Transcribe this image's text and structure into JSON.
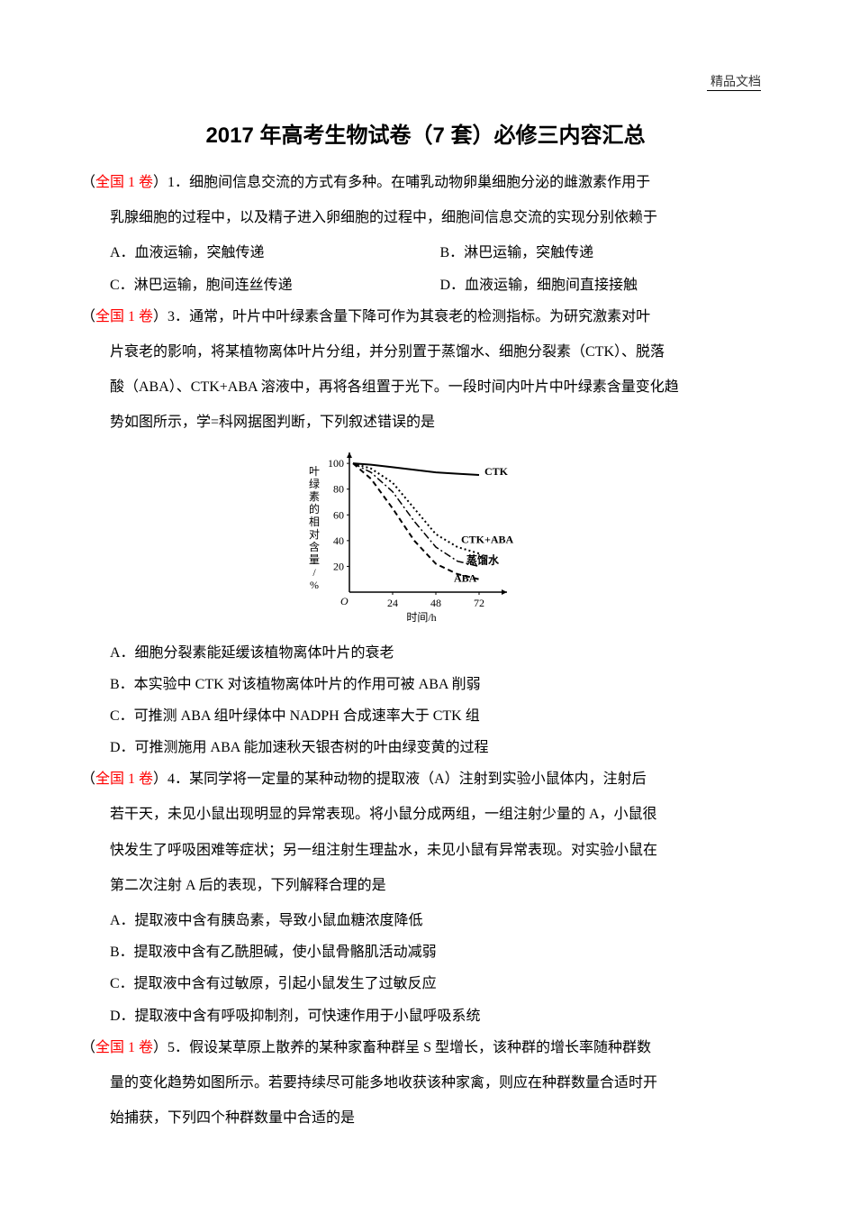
{
  "header_mark": "精品文档",
  "title": "2017 年高考生物试卷（7 套）必修三内容汇总",
  "source_label": "全国 1 卷",
  "questions": {
    "q1": {
      "num": "1．",
      "stem_line1": "细胞间信息交流的方式有多种。在哺乳动物卵巢细胞分泌的雌激素作用于",
      "stem_line2": "乳腺细胞的过程中，以及精子进入卵细胞的过程中，细胞间信息交流的实现分别依赖于",
      "opts": {
        "A": "A．血液运输，突触传递",
        "B": "B．淋巴运输，突触传递",
        "C": "C．淋巴运输，胞间连丝传递",
        "D": "D．血液运输，细胞间直接接触"
      }
    },
    "q3": {
      "num": "3．",
      "stem_line1": "通常，叶片中叶绿素含量下降可作为其衰老的检测指标。为研究激素对叶",
      "stem_line2": "片衰老的影响，将某植物离体叶片分组，并分别置于蒸馏水、细胞分裂素（CTK）、脱落",
      "stem_line3": "酸（ABA）、CTK+ABA 溶液中，再将各组置于光下。一段时间内叶片中叶绿素含量变化趋",
      "stem_line4": "势如图所示，学=科网据图判断，下列叙述错误的是",
      "opts": {
        "A": "A．细胞分裂素能延缓该植物离体叶片的衰老",
        "B": "B．本实验中 CTK 对该植物离体叶片的作用可被 ABA 削弱",
        "C": "C．可推测 ABA 组叶绿体中 NADPH 合成速率大于 CTK 组",
        "D": "D．可推测施用 ABA 能加速秋天银杏树的叶由绿变黄的过程"
      }
    },
    "q4": {
      "num": "4．",
      "stem_line1": "某同学将一定量的某种动物的提取液（A）注射到实验小鼠体内，注射后",
      "stem_line2": "若干天，未见小鼠出现明显的异常表现。将小鼠分成两组，一组注射少量的 A，小鼠很",
      "stem_line3": "快发生了呼吸困难等症状；另一组注射生理盐水，未见小鼠有异常表现。对实验小鼠在",
      "stem_line4": "第二次注射 A 后的表现，下列解释合理的是",
      "opts": {
        "A": "A．提取液中含有胰岛素，导致小鼠血糖浓度降低",
        "B": "B．提取液中含有乙酰胆碱，使小鼠骨骼肌活动减弱",
        "C": "C．提取液中含有过敏原，引起小鼠发生了过敏反应",
        "D": "D．提取液中含有呼吸抑制剂，可快速作用于小鼠呼吸系统"
      }
    },
    "q5": {
      "num": "5．",
      "stem_line1": "假设某草原上散养的某种家畜种群呈 S 型增长，该种群的增长率随种群数",
      "stem_line2": "量的变化趋势如图所示。若要持续尽可能多地收获该种家禽，则应在种群数量合适时开",
      "stem_line3": "始捕获，下列四个种群数量中合适的是"
    }
  },
  "chart": {
    "type": "line",
    "ylabel": "叶绿素的相对含量/%",
    "xlabel": "时间/h",
    "xlim": [
      0,
      80
    ],
    "ylim": [
      0,
      105
    ],
    "xticks": [
      24,
      48,
      72
    ],
    "yticks": [
      20,
      40,
      60,
      80,
      100
    ],
    "background_color": "#ffffff",
    "axis_color": "#000000",
    "font_size": 12,
    "series": {
      "CTK": {
        "label": "CTK",
        "color": "#000000",
        "style": "solid",
        "width": 2,
        "points": [
          [
            2,
            100
          ],
          [
            12,
            99
          ],
          [
            24,
            97
          ],
          [
            36,
            95
          ],
          [
            48,
            93
          ],
          [
            60,
            92
          ],
          [
            72,
            91
          ]
        ]
      },
      "CTK_ABA": {
        "label": "CTK+ABA",
        "color": "#000000",
        "style": "dotted",
        "width": 2,
        "points": [
          [
            2,
            100
          ],
          [
            12,
            96
          ],
          [
            24,
            85
          ],
          [
            36,
            65
          ],
          [
            48,
            45
          ],
          [
            60,
            35
          ],
          [
            72,
            30
          ]
        ]
      },
      "water": {
        "label": "蒸馏水",
        "color": "#000000",
        "style": "dash-dot",
        "width": 1.5,
        "points": [
          [
            2,
            100
          ],
          [
            12,
            93
          ],
          [
            24,
            78
          ],
          [
            36,
            55
          ],
          [
            48,
            35
          ],
          [
            60,
            24
          ],
          [
            72,
            20
          ]
        ]
      },
      "ABA": {
        "label": "ABA",
        "color": "#000000",
        "style": "dashed",
        "width": 2,
        "points": [
          [
            2,
            100
          ],
          [
            12,
            88
          ],
          [
            24,
            65
          ],
          [
            36,
            40
          ],
          [
            48,
            22
          ],
          [
            60,
            14
          ],
          [
            72,
            10
          ]
        ]
      }
    },
    "label_positions": {
      "CTK": [
        75,
        91
      ],
      "CTK_ABA": [
        62,
        38
      ],
      "water": [
        65,
        22
      ],
      "ABA": [
        58,
        8
      ]
    }
  }
}
